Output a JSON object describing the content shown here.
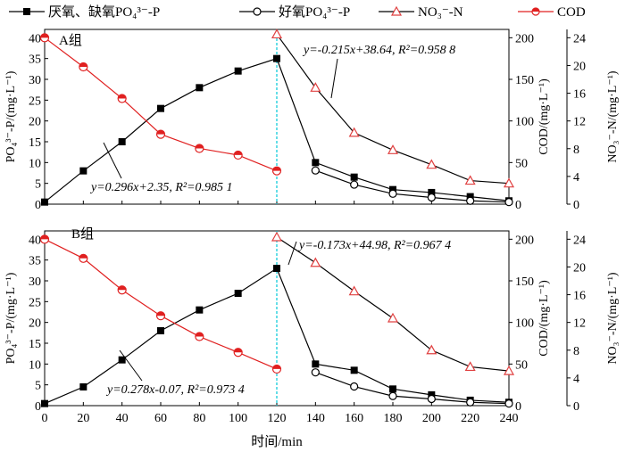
{
  "legend": {
    "anaerobic_anoxic_p": "厌氧、缺氧PO₄³⁻-P",
    "aerobic_p": "好氧PO₄³⁻-P",
    "no3n": "NO₃⁻-N",
    "cod": "COD"
  },
  "axes": {
    "xlabel": "时间/min",
    "ylabel_left": "PO₄³⁻-P/(mg·L⁻¹)",
    "ylabel_cod": "COD/(mg·L⁻¹)",
    "ylabel_no3": "NO₃⁻-N/(mg·L⁻¹)"
  },
  "colors": {
    "p_series": "#000000",
    "no3": "#e04040",
    "cod": "#e02020",
    "cod_fill": "#e02020",
    "divider": "#00c8d8"
  },
  "chart_data": [
    {
      "type": "line",
      "panel_label": "A组",
      "x_ticks": [
        0,
        20,
        40,
        60,
        80,
        100,
        120,
        140,
        160,
        180,
        200,
        220,
        240
      ],
      "ylim_left": [
        0,
        42
      ],
      "yticks_left": [
        0,
        5,
        10,
        15,
        20,
        25,
        30,
        35,
        40
      ],
      "ylim_cod": [
        0,
        210
      ],
      "yticks_cod": [
        0,
        50,
        100,
        150,
        200
      ],
      "ylim_no3": [
        0,
        25.2
      ],
      "yticks_no3": [
        0,
        4,
        8,
        12,
        16,
        20,
        24
      ],
      "series": [
        {
          "key": "anaerobic_anoxic_p",
          "axis": "left",
          "marker": "square",
          "x": [
            0,
            20,
            40,
            60,
            80,
            100,
            120,
            140,
            160,
            180,
            200,
            220,
            240
          ],
          "y": [
            0.5,
            8,
            15,
            23,
            28,
            32,
            35,
            10,
            6.5,
            3.5,
            2.8,
            1.8,
            0.8
          ]
        },
        {
          "key": "aerobic_p",
          "axis": "left",
          "marker": "circle",
          "x": [
            140,
            160,
            180,
            200,
            220,
            240
          ],
          "y": [
            8.1,
            4.7,
            2.5,
            1.6,
            0.8,
            0.5
          ]
        },
        {
          "key": "no3n",
          "axis": "no3",
          "marker": "triangle",
          "x": [
            120,
            140,
            160,
            180,
            200,
            220,
            240
          ],
          "y": [
            24.5,
            16.8,
            10.3,
            7.8,
            5.7,
            3.4,
            3.0
          ]
        },
        {
          "key": "cod",
          "axis": "cod",
          "marker": "halfcircle",
          "x": [
            0,
            20,
            40,
            60,
            80,
            100,
            120
          ],
          "y": [
            200,
            165,
            127,
            84,
            67,
            59,
            40
          ]
        }
      ],
      "annotations": [
        {
          "text": "y=-0.215x+38.64, R²=0.958 8"
        },
        {
          "text": "y=0.296x+2.35, R²=0.985 1"
        }
      ]
    },
    {
      "type": "line",
      "panel_label": "B组",
      "x_ticks": [
        0,
        20,
        40,
        60,
        80,
        100,
        120,
        140,
        160,
        180,
        200,
        220,
        240
      ],
      "ylim_left": [
        0,
        42
      ],
      "yticks_left": [
        0,
        5,
        10,
        15,
        20,
        25,
        30,
        35,
        40
      ],
      "ylim_cod": [
        0,
        210
      ],
      "yticks_cod": [
        0,
        50,
        100,
        150,
        200
      ],
      "ylim_no3": [
        0,
        25.2
      ],
      "yticks_no3": [
        0,
        4,
        8,
        12,
        16,
        20,
        24
      ],
      "series": [
        {
          "key": "anaerobic_anoxic_p",
          "axis": "left",
          "marker": "square",
          "x": [
            0,
            20,
            40,
            60,
            80,
            100,
            120,
            140,
            160,
            180,
            200,
            220,
            240
          ],
          "y": [
            0.5,
            4.5,
            11,
            18,
            23,
            27,
            33,
            10,
            8.5,
            4,
            2.6,
            1.3,
            0.8
          ]
        },
        {
          "key": "aerobic_p",
          "axis": "left",
          "marker": "circle",
          "x": [
            140,
            160,
            180,
            200,
            220,
            240
          ],
          "y": [
            8,
            4.6,
            2.3,
            1.6,
            0.8,
            0.5
          ]
        },
        {
          "key": "no3n",
          "axis": "no3",
          "marker": "triangle",
          "x": [
            120,
            140,
            160,
            180,
            200,
            220,
            240
          ],
          "y": [
            24.3,
            20.6,
            16.5,
            12.6,
            8.0,
            5.6,
            5.0
          ]
        },
        {
          "key": "cod",
          "axis": "cod",
          "marker": "halfcircle",
          "x": [
            0,
            20,
            40,
            60,
            80,
            100,
            120
          ],
          "y": [
            200,
            177,
            139,
            108,
            83,
            64,
            44
          ]
        }
      ],
      "annotations": [
        {
          "text": "y=-0.173x+44.98, R²=0.967 4"
        },
        {
          "text": "y=0.278x-0.07, R²=0.973 4"
        }
      ]
    }
  ]
}
